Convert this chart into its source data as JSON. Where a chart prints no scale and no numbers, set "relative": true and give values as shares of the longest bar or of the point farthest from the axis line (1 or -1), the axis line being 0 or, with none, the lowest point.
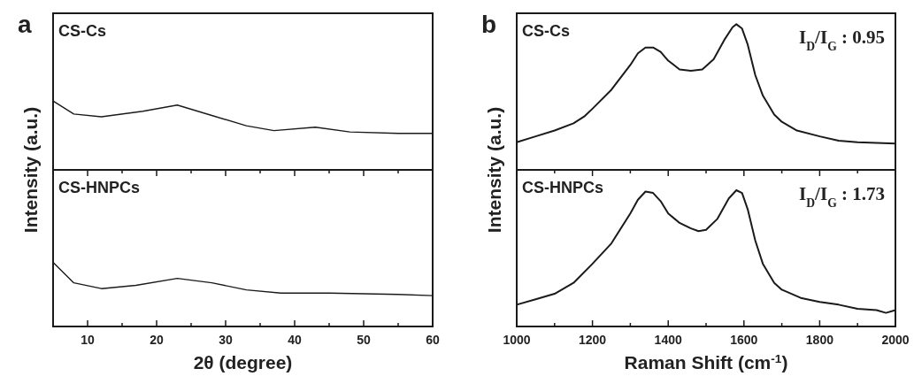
{
  "chart_data": [
    {
      "type": "line",
      "title": "a",
      "ylabel": "Intensity (a.u.)",
      "relative": true,
      "tick_labels": false,
      "xlim": [
        5,
        60
      ],
      "x": [
        5,
        8,
        12,
        18,
        23,
        28,
        33,
        37,
        43,
        48,
        55,
        60
      ],
      "series": [
        {
          "name": "CS-Cs",
          "color": "#1a1a1a",
          "values": [
            1,
            0.81,
            0.77,
            0.85,
            0.94,
            0.79,
            0.64,
            0.57,
            0.62,
            0.55,
            0.53,
            0.53
          ]
        }
      ]
    },
    {
      "type": "line",
      "xlabel": "2θ (degree)",
      "relative": true,
      "tick_labels": "x",
      "xlim": [
        5,
        60
      ],
      "xticks": [
        {
          "value": 5,
          "label": null
        },
        10,
        {
          "value": 15,
          "label": null
        },
        20,
        {
          "value": 25,
          "label": null
        },
        30,
        {
          "value": 35,
          "label": null
        },
        40,
        {
          "value": 45,
          "label": null
        },
        50,
        {
          "value": 55,
          "label": null
        },
        60
      ],
      "x": [
        5,
        8,
        12,
        17,
        23,
        28,
        33,
        38,
        45,
        55,
        60
      ],
      "series": [
        {
          "name": "CS-HNPCs",
          "color": "#1a1a1a",
          "values": [
            1,
            0.68,
            0.59,
            0.64,
            0.75,
            0.68,
            0.57,
            0.52,
            0.52,
            0.5,
            0.48
          ]
        }
      ]
    },
    {
      "type": "line",
      "title": "b",
      "ylabel": "Intensity (a.u.)",
      "relative": true,
      "tick_labels": false,
      "xlim": [
        1000,
        2000
      ],
      "annotations": [
        "I$_{D}$/I$_{G}$ : 0.95"
      ],
      "x": [
        1000,
        1050,
        1100,
        1150,
        1180,
        1200,
        1250,
        1300,
        1320,
        1340,
        1360,
        1380,
        1400,
        1430,
        1460,
        1490,
        1520,
        1550,
        1570,
        1580,
        1595,
        1610,
        1630,
        1650,
        1680,
        1700,
        1740,
        1800,
        1850,
        1900,
        2000
      ],
      "series": [
        {
          "name": "CS-Cs",
          "color": "#1a1a1a",
          "values": [
            0.19,
            0.23,
            0.27,
            0.32,
            0.37,
            0.42,
            0.55,
            0.72,
            0.8,
            0.84,
            0.84,
            0.81,
            0.75,
            0.69,
            0.68,
            0.69,
            0.76,
            0.9,
            0.98,
            1,
            0.97,
            0.86,
            0.65,
            0.51,
            0.38,
            0.33,
            0.27,
            0.23,
            0.2,
            0.19,
            0.18
          ]
        }
      ]
    },
    {
      "type": "line",
      "xlabel": "Raman Shift (cm$^{-1}$)",
      "relative": true,
      "tick_labels": "x",
      "xlim": [
        1000,
        2000
      ],
      "annotations": [
        "I$_{D}$/I$_{G}$ : 1.73"
      ],
      "xticks": [
        1000,
        {
          "value": 1100,
          "label": null
        },
        1200,
        {
          "value": 1300,
          "label": null
        },
        1400,
        {
          "value": 1500,
          "label": null
        },
        1600,
        {
          "value": 1700,
          "label": null
        },
        1800,
        {
          "value": 1900,
          "label": null
        },
        2000
      ],
      "x": [
        1000,
        1050,
        1100,
        1150,
        1200,
        1250,
        1300,
        1320,
        1340,
        1360,
        1380,
        1400,
        1430,
        1460,
        1480,
        1500,
        1530,
        1560,
        1580,
        1595,
        1610,
        1630,
        1650,
        1680,
        1700,
        1750,
        1800,
        1850,
        1900,
        1950,
        1975,
        2000
      ],
      "series": [
        {
          "name": "CS-HNPCs",
          "color": "#1a1a1a",
          "values": [
            0.16,
            0.2,
            0.24,
            0.32,
            0.46,
            0.61,
            0.83,
            0.93,
            0.99,
            0.98,
            0.92,
            0.83,
            0.76,
            0.72,
            0.7,
            0.71,
            0.79,
            0.94,
            1,
            0.98,
            0.86,
            0.63,
            0.46,
            0.32,
            0.27,
            0.21,
            0.18,
            0.16,
            0.13,
            0.12,
            0.1,
            0.12
          ]
        }
      ]
    }
  ]
}
